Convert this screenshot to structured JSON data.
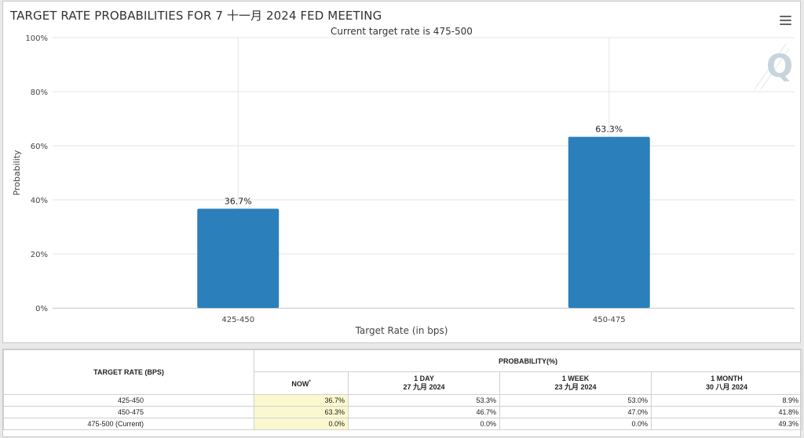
{
  "chart": {
    "title": "TARGET RATE PROBABILITIES FOR 7 十一月 2024 FED MEETING",
    "subtitle": "Current target rate is 475-500"
  },
  "chart_data": {
    "type": "bar",
    "title": "TARGET RATE PROBABILITIES FOR 7 十一月 2024 FED MEETING",
    "subtitle": "Current target rate is 475-500",
    "categories": [
      "425-450",
      "450-475"
    ],
    "values": [
      36.7,
      63.3
    ],
    "data_labels": [
      "36.7%",
      "63.3%"
    ],
    "xlabel": "Target Rate (in bps)",
    "ylabel": "Probability",
    "ylim": [
      0,
      100
    ],
    "yticks": [
      "0%",
      "20%",
      "40%",
      "60%",
      "80%",
      "100%"
    ],
    "grid": true,
    "bar_color": "#2b7fba"
  },
  "table": {
    "col_rate_header": "TARGET RATE (BPS)",
    "col_prob_header": "PROBABILITY(%)",
    "sub_headers": [
      {
        "line1": "NOW",
        "sup": "*",
        "line2": ""
      },
      {
        "line1": "1 DAY",
        "sup": "",
        "line2": "27 九月 2024"
      },
      {
        "line1": "1 WEEK",
        "sup": "",
        "line2": "23 九月 2024"
      },
      {
        "line1": "1 MONTH",
        "sup": "",
        "line2": "30 八月 2024"
      }
    ],
    "rows": [
      {
        "rate": "425-450",
        "now": "36.7%",
        "day": "53.3%",
        "week": "53.0%",
        "month": "8.9%"
      },
      {
        "rate": "450-475",
        "now": "63.3%",
        "day": "46.7%",
        "week": "47.0%",
        "month": "41.8%"
      },
      {
        "rate": "475-500 (Current)",
        "now": "0.0%",
        "day": "0.0%",
        "week": "0.0%",
        "month": "49.3%"
      }
    ]
  },
  "icons": {
    "menu": "hamburger-menu-icon",
    "logo": "quikstrike-q-logo"
  }
}
